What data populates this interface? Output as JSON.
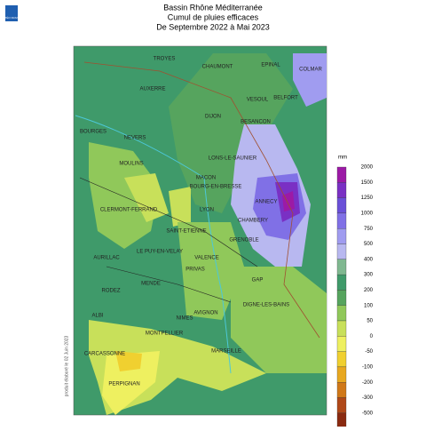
{
  "header": {
    "logo": "MÉTÉO FRANCE",
    "title": [
      "Bassin Rhône Méditerranée",
      "Cumul de pluies efficaces",
      "De Septembre 2022 à Mai 2023"
    ]
  },
  "map": {
    "cities": [
      "TROYES",
      "CHAUMONT",
      "EPINAL",
      "COLMAR",
      "AUXERRE",
      "VESOUL",
      "BELFORT",
      "DIJON",
      "BOURGES",
      "NEVERS",
      "BESANCON",
      "MOULINS",
      "LONS-LE-SAUNIER",
      "MACON",
      "BOURG-EN-BRESSE",
      "ANNECY",
      "CLERMONT-FERRAND",
      "LYON",
      "CHAMBERY",
      "SAINT-ETIENNE",
      "GRENOBLE",
      "AURILLAC",
      "LE PUY-EN-VELAY",
      "VALENCE",
      "PRIVAS",
      "GAP",
      "RODEZ",
      "MENDE",
      "DIGNE-LES-BAINS",
      "AVIGNON",
      "ALBI",
      "NIMES",
      "MONTPELLIER",
      "MARSEILLE",
      "CARCASSONNE",
      "PERPIGNAN"
    ]
  },
  "legend": {
    "unit": "mm",
    "levels": [
      {
        "value": 2000,
        "color": "#9c1aa6"
      },
      {
        "value": 1500,
        "color": "#7a30c4"
      },
      {
        "value": 1250,
        "color": "#6a50d8"
      },
      {
        "value": 1000,
        "color": "#8070e6"
      },
      {
        "value": 750,
        "color": "#a09cf0"
      },
      {
        "value": 500,
        "color": "#b8b8f0"
      },
      {
        "value": 400,
        "color": "#7fb890"
      },
      {
        "value": 300,
        "color": "#3f9a6a"
      },
      {
        "value": 200,
        "color": "#56a45e"
      },
      {
        "value": 100,
        "color": "#90c85a"
      },
      {
        "value": 50,
        "color": "#c8e05a"
      },
      {
        "value": 0,
        "color": "#eef060"
      },
      {
        "value": -50,
        "color": "#f0d030"
      },
      {
        "value": -100,
        "color": "#e8a820"
      },
      {
        "value": -200,
        "color": "#d07818"
      },
      {
        "value": -300,
        "color": "#b04818"
      },
      {
        "value": -500,
        "color": "#8a2a10"
      }
    ]
  },
  "credit": "produit élaboré le 02 Juin 2023"
}
